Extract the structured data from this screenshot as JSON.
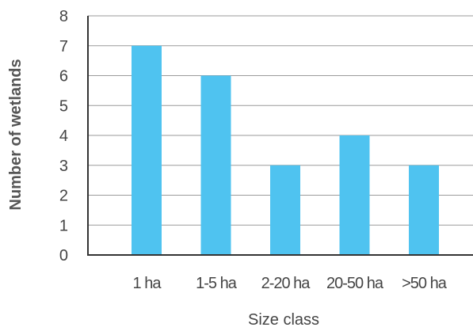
{
  "chart_data": {
    "type": "bar",
    "categories": [
      "1 ha",
      "1-5 ha",
      "2-20 ha",
      "20-50 ha",
      ">50 ha"
    ],
    "values": [
      7,
      6,
      3,
      4,
      3
    ],
    "title": "",
    "xlabel": "Size class",
    "ylabel": "Number of wetlands",
    "ylim": [
      0,
      8
    ],
    "yticks": [
      "0",
      "1",
      "2",
      "3",
      "4",
      "5",
      "6",
      "7",
      "8"
    ],
    "grid": true,
    "bar_color": "#4fc3f0",
    "grid_color": "#9a9a9a",
    "axis_color": "#333333"
  }
}
